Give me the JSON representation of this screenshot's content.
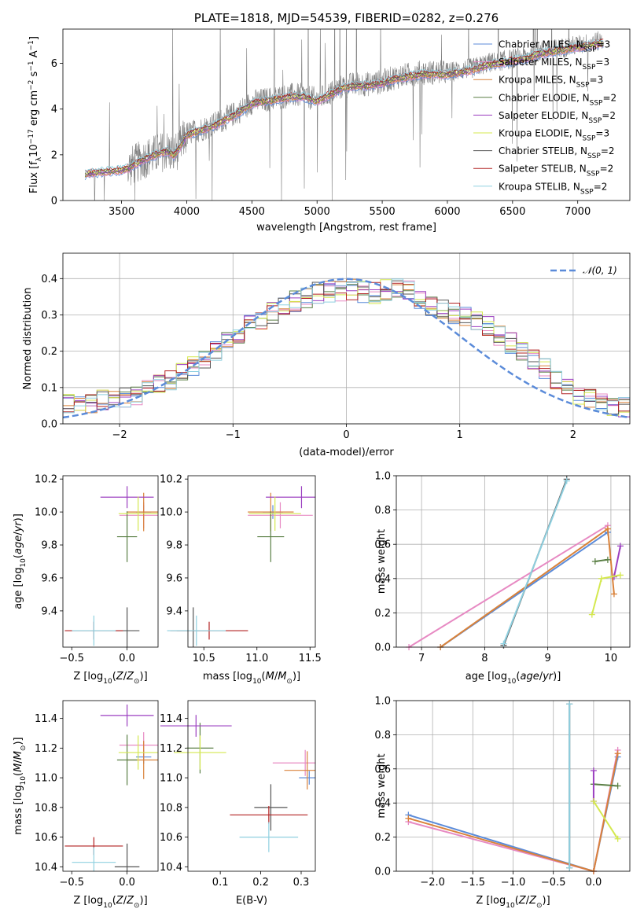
{
  "figure": {
    "title": "PLATE=1818, MJD=54539, FIBERID=0282, z=0.276"
  },
  "colors": {
    "Chabrier MILES": "#5b8bd9",
    "Salpeter MILES": "#e78ac3",
    "Kroupa MILES": "#d9823a",
    "Chabrier ELODIE": "#5a7f45",
    "Salpeter ELODIE": "#9b3fc0",
    "Kroupa ELODIE": "#d4e84f",
    "Chabrier STELIB": "#555555",
    "Salpeter STELIB": "#b22222",
    "Kroupa STELIB": "#8fd0e0",
    "data": "#808080",
    "grid": "#b0b0b0"
  },
  "chart_data": [
    {
      "id": "spectrum",
      "type": "line",
      "title": "PLATE=1818, MJD=54539, FIBERID=0282, z=0.276",
      "xlabel": "wavelength [Angstrom, rest frame]",
      "ylabel": "Flux [f_λ 10^-17 erg cm^-2 s^-1 A^-1]",
      "xlim": [
        3050,
        7400
      ],
      "ylim": [
        0,
        7.5
      ],
      "xticks": [
        3500,
        4000,
        4500,
        5000,
        5500,
        6000,
        6500,
        7000
      ],
      "yticks": [
        0,
        2,
        4,
        6
      ],
      "grid": false,
      "legend_position": "upper right",
      "data_continuum": {
        "x": [
          3220,
          3300,
          3400,
          3500,
          3550,
          3600,
          3700,
          3800,
          3850,
          3900,
          3950,
          4000,
          4100,
          4200,
          4300,
          4400,
          4500,
          4600,
          4700,
          4800,
          4900,
          5000,
          5100,
          5200,
          5300,
          5400,
          5500,
          5600,
          5700,
          5800,
          5900,
          6000,
          6100,
          6200,
          6300,
          6400,
          6500,
          6600,
          6700,
          6800,
          6900,
          7000,
          7100,
          7200
        ],
        "y": [
          1.1,
          1.2,
          1.25,
          1.3,
          1.4,
          1.6,
          1.9,
          2.1,
          2.2,
          2.0,
          2.4,
          2.9,
          3.1,
          3.3,
          3.6,
          3.9,
          4.3,
          4.4,
          4.5,
          4.6,
          4.6,
          4.4,
          4.7,
          5.0,
          5.1,
          5.1,
          5.2,
          5.4,
          5.5,
          5.6,
          5.6,
          5.6,
          5.7,
          5.8,
          6.0,
          6.1,
          6.2,
          6.3,
          6.5,
          6.6,
          6.7,
          6.8,
          6.9,
          7.0
        ]
      },
      "series": [
        {
          "name": "Chabrier MILES, N_SSP=3"
        },
        {
          "name": "Salpeter MILES, N_SSP=3"
        },
        {
          "name": "Kroupa MILES, N_SSP=3"
        },
        {
          "name": "Chabrier ELODIE, N_SSP=2"
        },
        {
          "name": "Salpeter ELODIE, N_SSP=2"
        },
        {
          "name": "Kroupa ELODIE, N_SSP=3"
        },
        {
          "name": "Chabrier STELIB, N_SSP=2"
        },
        {
          "name": "Salpeter STELIB, N_SSP=2"
        },
        {
          "name": "Kroupa STELIB, N_SSP=2"
        }
      ]
    },
    {
      "id": "residuals",
      "type": "line",
      "xlabel": "(data-model)/error",
      "ylabel": "Normed distribution",
      "xlim": [
        -2.5,
        2.5
      ],
      "ylim": [
        0,
        0.47
      ],
      "xticks": [
        -2,
        -1,
        0,
        1,
        2
      ],
      "yticks": [
        0.0,
        0.1,
        0.2,
        0.3,
        0.4
      ],
      "grid": true,
      "legend": [
        "𝒩(0, 1)"
      ],
      "legend_position": "upper right",
      "histogram_envelope": {
        "x": [
          -2.5,
          -2.25,
          -2.0,
          -1.75,
          -1.5,
          -1.25,
          -1.0,
          -0.75,
          -0.5,
          -0.25,
          0.0,
          0.25,
          0.5,
          0.75,
          1.0,
          1.25,
          1.5,
          1.75,
          2.0,
          2.25,
          2.5
        ],
        "y": [
          0.05,
          0.06,
          0.07,
          0.09,
          0.13,
          0.18,
          0.24,
          0.29,
          0.33,
          0.36,
          0.37,
          0.36,
          0.38,
          0.32,
          0.3,
          0.27,
          0.21,
          0.15,
          0.09,
          0.06,
          0.04
        ]
      }
    },
    {
      "id": "age-vs-Z",
      "type": "scatter",
      "xlabel": "Z [log10(Z/Z⊙)]",
      "ylabel": "age [log10(age/yr)]",
      "xlim": [
        -0.58,
        0.28
      ],
      "ylim": [
        9.18,
        10.22
      ],
      "xticks": [
        -0.5,
        0.0
      ],
      "yticks": [
        9.4,
        9.6,
        9.8,
        10.0,
        10.2
      ],
      "points": [
        {
          "series": "Chabrier MILES",
          "x": 0.15,
          "y": 10.0
        },
        {
          "series": "Salpeter MILES",
          "x": 0.15,
          "y": 9.98
        },
        {
          "series": "Kroupa MILES",
          "x": 0.15,
          "y": 10.0
        },
        {
          "series": "Chabrier ELODIE",
          "x": 0.0,
          "y": 9.85
        },
        {
          "series": "Salpeter ELODIE",
          "x": 0.0,
          "y": 10.09
        },
        {
          "series": "Kroupa ELODIE",
          "x": 0.1,
          "y": 9.99
        },
        {
          "series": "Chabrier STELIB",
          "x": 0.0,
          "y": 9.28
        },
        {
          "series": "Salpeter STELIB",
          "x": -0.3,
          "y": 9.28
        },
        {
          "series": "Kroupa STELIB",
          "x": -0.3,
          "y": 9.28
        }
      ]
    },
    {
      "id": "age-vs-mass",
      "type": "scatter",
      "xlabel": "mass [log10(M/M⊙)]",
      "xlim": [
        10.35,
        11.55
      ],
      "ylim": [
        9.18,
        10.22
      ],
      "xticks": [
        10.5,
        11.0,
        11.5
      ],
      "yticks": [
        9.4,
        9.6,
        9.8,
        10.0,
        10.2
      ],
      "points": [
        {
          "series": "Chabrier MILES",
          "x": 11.15,
          "y": 10.0
        },
        {
          "series": "Salpeter MILES",
          "x": 11.22,
          "y": 9.98
        },
        {
          "series": "Kroupa MILES",
          "x": 11.13,
          "y": 10.0
        },
        {
          "series": "Chabrier ELODIE",
          "x": 11.13,
          "y": 9.85
        },
        {
          "series": "Salpeter ELODIE",
          "x": 11.42,
          "y": 10.09
        },
        {
          "series": "Kroupa ELODIE",
          "x": 11.17,
          "y": 9.99
        },
        {
          "series": "Chabrier STELIB",
          "x": 10.4,
          "y": 9.28
        },
        {
          "series": "Salpeter STELIB",
          "x": 10.55,
          "y": 9.28
        },
        {
          "series": "Kroupa STELIB",
          "x": 10.43,
          "y": 9.28
        }
      ]
    },
    {
      "id": "weight-vs-age",
      "type": "line",
      "xlabel": "age [log10(age/yr)]",
      "ylabel": "mass weight",
      "xlim": [
        6.6,
        10.3
      ],
      "ylim": [
        0.0,
        1.0
      ],
      "xticks": [
        7,
        8,
        9,
        10
      ],
      "yticks": [
        0.0,
        0.2,
        0.4,
        0.6,
        0.8,
        1.0
      ],
      "grid": true,
      "series": [
        {
          "series": "Chabrier MILES",
          "x": [
            7.3,
            9.95
          ],
          "y": [
            0.0,
            0.67
          ]
        },
        {
          "series": "Salpeter MILES",
          "x": [
            6.8,
            9.95
          ],
          "y": [
            0.0,
            0.71
          ]
        },
        {
          "series": "Kroupa MILES",
          "x": [
            7.3,
            9.95,
            10.05
          ],
          "y": [
            0.0,
            0.69,
            0.31
          ]
        },
        {
          "series": "Chabrier ELODIE",
          "x": [
            9.75,
            9.95
          ],
          "y": [
            0.5,
            0.51
          ]
        },
        {
          "series": "Salpeter ELODIE",
          "x": [
            10.05,
            10.15
          ],
          "y": [
            0.41,
            0.59
          ]
        },
        {
          "series": "Kroupa ELODIE",
          "x": [
            9.7,
            9.85,
            10.15
          ],
          "y": [
            0.19,
            0.4,
            0.42
          ]
        },
        {
          "series": "Chabrier STELIB",
          "x": [
            8.3,
            9.3
          ],
          "y": [
            0.01,
            0.98
          ]
        },
        {
          "series": "Kroupa STELIB",
          "x": [
            8.3,
            9.3
          ],
          "y": [
            0.02,
            0.97
          ]
        }
      ]
    },
    {
      "id": "mass-vs-Z",
      "type": "scatter",
      "xlabel": "Z [log10(Z/Z⊙)]",
      "ylabel": "mass [log10(M/M⊙)]",
      "xlim": [
        -0.58,
        0.28
      ],
      "ylim": [
        10.37,
        11.52
      ],
      "xticks": [
        -0.5,
        0.0
      ],
      "yticks": [
        10.4,
        10.6,
        10.8,
        11.0,
        11.2,
        11.4
      ],
      "points": [
        {
          "series": "Chabrier MILES",
          "x": 0.15,
          "y": 11.14
        },
        {
          "series": "Salpeter MILES",
          "x": 0.15,
          "y": 11.22
        },
        {
          "series": "Kroupa MILES",
          "x": 0.15,
          "y": 11.12
        },
        {
          "series": "Chabrier ELODIE",
          "x": 0.0,
          "y": 11.12
        },
        {
          "series": "Salpeter ELODIE",
          "x": 0.0,
          "y": 11.42
        },
        {
          "series": "Kroupa ELODIE",
          "x": 0.1,
          "y": 11.17
        },
        {
          "series": "Chabrier STELIB",
          "x": 0.0,
          "y": 10.4
        },
        {
          "series": "Salpeter STELIB",
          "x": -0.3,
          "y": 10.54
        },
        {
          "series": "Kroupa STELIB",
          "x": -0.3,
          "y": 10.43
        }
      ]
    },
    {
      "id": "mass-vs-EBV",
      "type": "scatter",
      "xlabel": "E(B-V)",
      "xlim": [
        0.02,
        0.335
      ],
      "ylim": [
        10.37,
        11.52
      ],
      "xticks": [
        0.1,
        0.2,
        0.3
      ],
      "yticks": [
        10.4,
        10.6,
        10.8,
        11.0,
        11.2,
        11.4
      ],
      "points": [
        {
          "series": "Chabrier MILES",
          "x": 0.32,
          "y": 11.0
        },
        {
          "series": "Salpeter MILES",
          "x": 0.31,
          "y": 11.1
        },
        {
          "series": "Kroupa MILES",
          "x": 0.315,
          "y": 11.05
        },
        {
          "series": "Chabrier ELODIE",
          "x": 0.05,
          "y": 11.2
        },
        {
          "series": "Salpeter ELODIE",
          "x": 0.04,
          "y": 11.35
        },
        {
          "series": "Kroupa ELODIE",
          "x": 0.05,
          "y": 11.17
        },
        {
          "series": "Chabrier STELIB",
          "x": 0.225,
          "y": 10.8
        },
        {
          "series": "Salpeter STELIB",
          "x": 0.22,
          "y": 10.75
        },
        {
          "series": "Kroupa STELIB",
          "x": 0.22,
          "y": 10.6
        }
      ]
    },
    {
      "id": "weight-vs-Z",
      "type": "line",
      "xlabel": "Z [log10(Z/Z⊙)]",
      "ylabel": "mass weight",
      "xlim": [
        -2.45,
        0.45
      ],
      "ylim": [
        0.0,
        1.0
      ],
      "xticks": [
        -2.0,
        -1.5,
        -1.0,
        -0.5,
        0.0
      ],
      "yticks": [
        0.0,
        0.2,
        0.4,
        0.6,
        0.8,
        1.0
      ],
      "grid": true,
      "series": [
        {
          "series": "Chabrier MILES",
          "x": [
            -2.3,
            0.0,
            0.3
          ],
          "y": [
            0.33,
            0.0,
            0.67
          ]
        },
        {
          "series": "Salpeter MILES",
          "x": [
            -2.3,
            0.0,
            0.3
          ],
          "y": [
            0.29,
            0.0,
            0.71
          ]
        },
        {
          "series": "Kroupa MILES",
          "x": [
            -2.3,
            0.0,
            0.3
          ],
          "y": [
            0.31,
            0.0,
            0.69
          ]
        },
        {
          "series": "Chabrier ELODIE",
          "x": [
            0.0,
            0.3
          ],
          "y": [
            0.51,
            0.5
          ]
        },
        {
          "series": "Salpeter ELODIE",
          "x": [
            0.0,
            0.0
          ],
          "y": [
            0.41,
            0.59
          ]
        },
        {
          "series": "Kroupa ELODIE",
          "x": [
            0.0,
            0.3
          ],
          "y": [
            0.41,
            0.19
          ]
        },
        {
          "series": "Chabrier STELIB",
          "x": [
            -0.3,
            -0.3
          ],
          "y": [
            0.02,
            0.98
          ]
        },
        {
          "series": "Kroupa STELIB",
          "x": [
            -0.3,
            -0.3
          ],
          "y": [
            0.02,
            0.98
          ]
        }
      ]
    }
  ]
}
